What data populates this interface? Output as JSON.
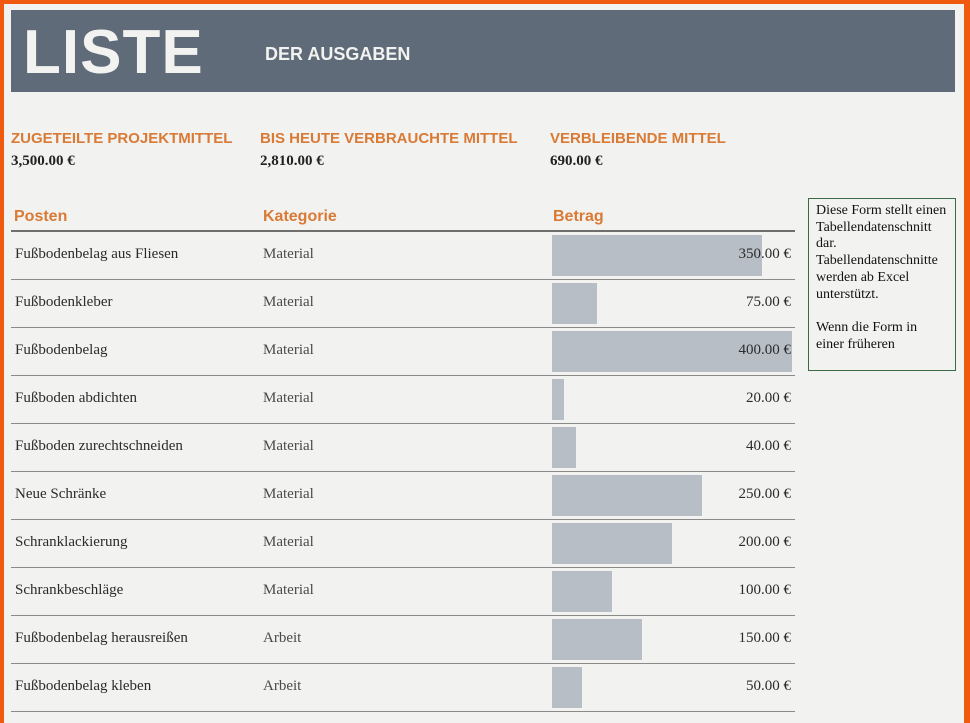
{
  "banner": {
    "title": "LISTE",
    "subtitle": "DER AUSGABEN"
  },
  "summary": [
    {
      "label": "ZUGETEILTE PROJEKTMITTEL",
      "value": "3,500.00 €"
    },
    {
      "label": "BIS HEUTE VERBRAUCHTE MITTEL",
      "value": "2,810.00 €"
    },
    {
      "label": "VERBLEIBENDE MITTEL",
      "value": "690.00 €"
    }
  ],
  "table": {
    "headers": {
      "item": "Posten",
      "category": "Kategorie",
      "amount": "Betrag"
    },
    "bar_max": 400,
    "rows": [
      {
        "item": "Fußbodenbelag aus Fliesen",
        "category": "Material",
        "value": 350,
        "amount": "350.00 €"
      },
      {
        "item": "Fußbodenkleber",
        "category": "Material",
        "value": 75,
        "amount": "75.00 €"
      },
      {
        "item": "Fußbodenbelag",
        "category": "Material",
        "value": 400,
        "amount": "400.00 €"
      },
      {
        "item": "Fußboden abdichten",
        "category": "Material",
        "value": 20,
        "amount": "20.00 €"
      },
      {
        "item": "Fußboden zurechtschneiden",
        "category": "Material",
        "value": 40,
        "amount": "40.00 €"
      },
      {
        "item": "Neue Schränke",
        "category": "Material",
        "value": 250,
        "amount": "250.00 €"
      },
      {
        "item": "Schranklackierung",
        "category": "Material",
        "value": 200,
        "amount": "200.00 €"
      },
      {
        "item": "Schrankbeschläge",
        "category": "Material",
        "value": 100,
        "amount": "100.00 €"
      },
      {
        "item": "Fußbodenbelag herausreißen",
        "category": "Arbeit",
        "value": 150,
        "amount": "150.00 €"
      },
      {
        "item": "Fußbodenbelag kleben",
        "category": "Arbeit",
        "value": 50,
        "amount": "50.00 €"
      }
    ]
  },
  "note": {
    "line1": "Diese Form stellt einen Tabellendatenschnitt dar. Tabellendatenschnitte werden ab Excel unterstützt.",
    "line2": "Wenn die Form in einer früheren"
  },
  "colors": {
    "frame": "#f05a0e",
    "banner": "#5f6b79",
    "accent": "#d97a35",
    "bar": "#b8bec6"
  }
}
